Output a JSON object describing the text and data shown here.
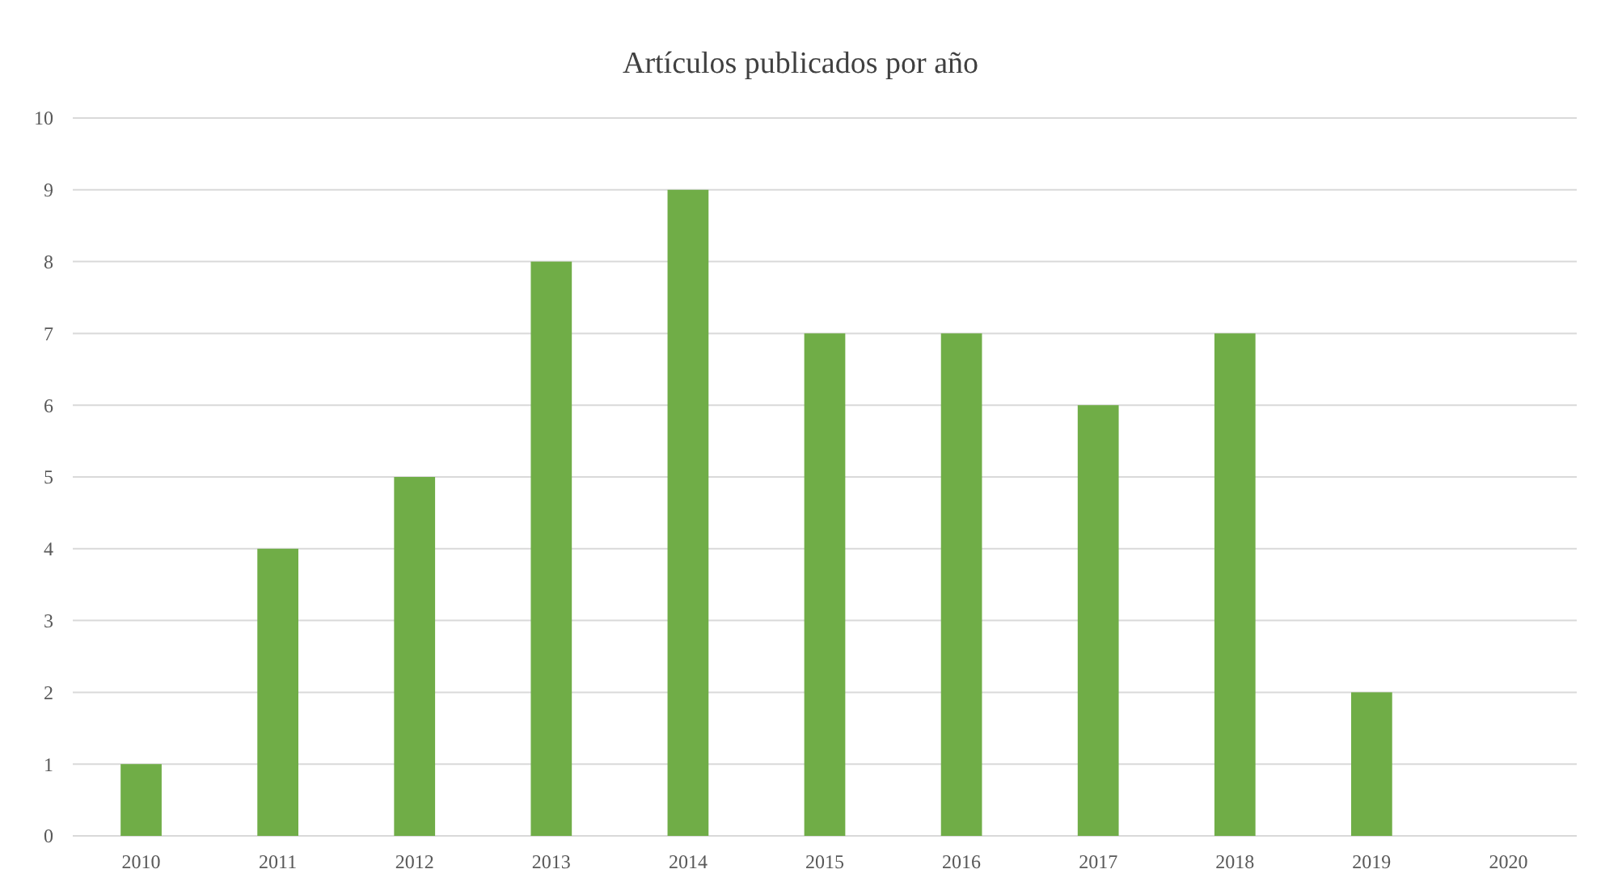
{
  "chart_data": {
    "type": "bar",
    "title": "Artículos publicados por año",
    "categories": [
      "2010",
      "2011",
      "2012",
      "2013",
      "2014",
      "2015",
      "2016",
      "2017",
      "2018",
      "2019",
      "2020"
    ],
    "values": [
      1,
      4,
      5,
      8,
      9,
      7,
      7,
      6,
      7,
      2,
      0
    ],
    "color": "#70ad47",
    "ylim": [
      0,
      10
    ],
    "yticks": [
      0,
      1,
      2,
      3,
      4,
      5,
      6,
      7,
      8,
      9,
      10
    ],
    "grid": "y"
  }
}
